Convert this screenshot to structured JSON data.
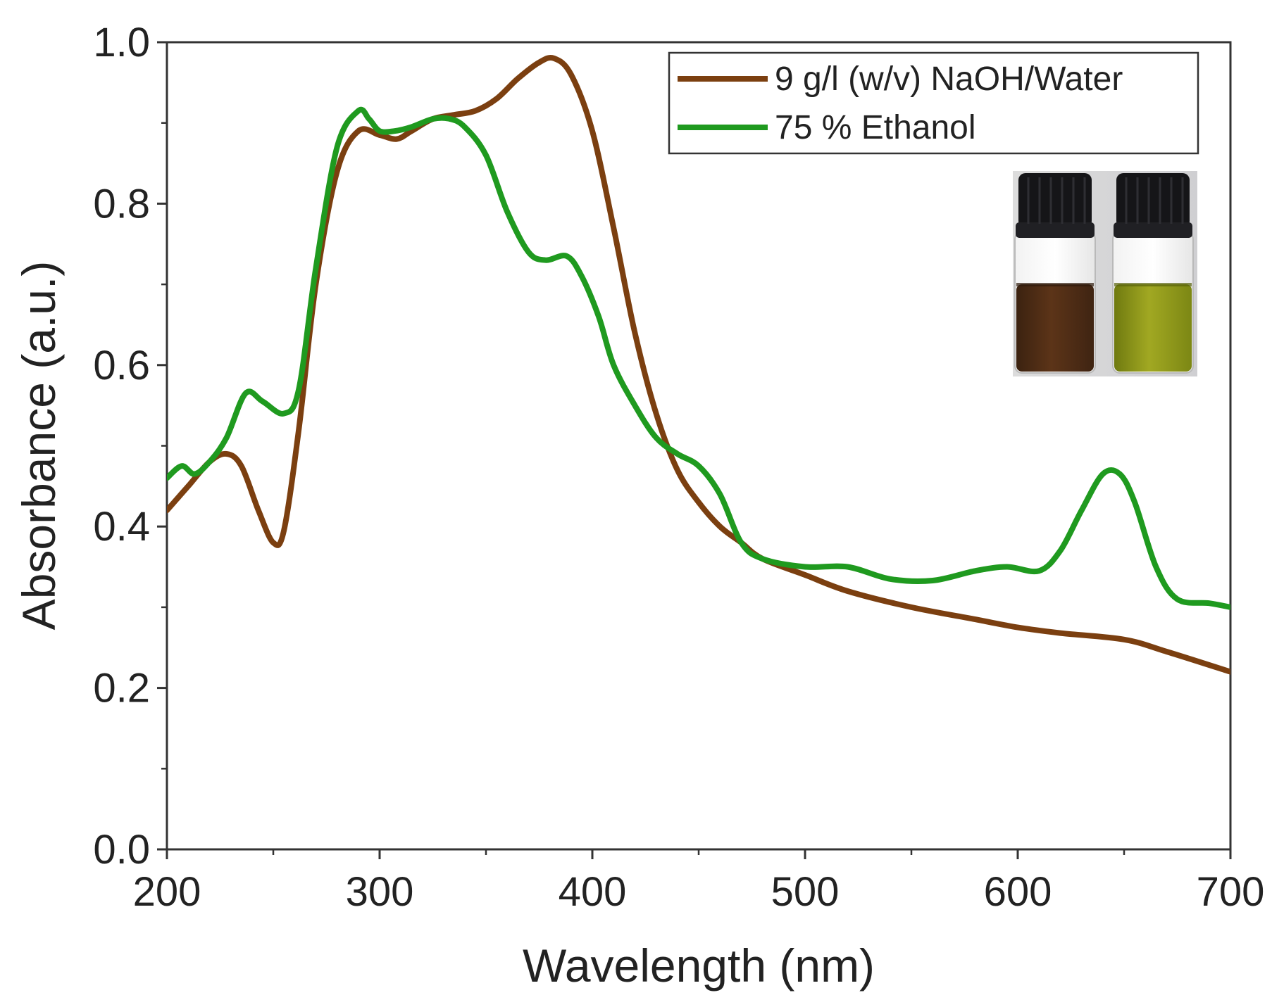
{
  "chart_data": {
    "type": "line",
    "title": "",
    "xlabel": "Wavelength (nm)",
    "ylabel": "Absorbance (a.u.)",
    "xlim": [
      200,
      700
    ],
    "ylim": [
      0.0,
      1.0
    ],
    "xticks": [
      200,
      300,
      400,
      500,
      600,
      700
    ],
    "xtick_labels": [
      "200",
      "300",
      "400",
      "500",
      "600",
      "700"
    ],
    "yticks": [
      0.0,
      0.2,
      0.4,
      0.6,
      0.8,
      1.0
    ],
    "ytick_labels": [
      "0.0",
      "0.2",
      "0.4",
      "0.6",
      "0.8",
      "1.0"
    ],
    "grid": false,
    "legend_position": "top-right",
    "inset": "photograph of two capped glass vials: brown liquid (left) and yellow-green liquid (right)",
    "series": [
      {
        "name": "9 g/l (w/v) NaOH/Water",
        "color": "#7b3f10",
        "x": [
          200,
          210,
          220,
          228,
          235,
          243,
          250,
          255,
          262,
          270,
          280,
          290,
          300,
          308,
          315,
          325,
          335,
          345,
          355,
          365,
          375,
          382,
          390,
          400,
          410,
          420,
          430,
          440,
          450,
          460,
          470,
          480,
          500,
          520,
          550,
          580,
          600,
          620,
          650,
          670,
          700
        ],
        "y": [
          0.42,
          0.45,
          0.48,
          0.49,
          0.475,
          0.42,
          0.38,
          0.395,
          0.52,
          0.7,
          0.84,
          0.89,
          0.885,
          0.88,
          0.89,
          0.905,
          0.91,
          0.915,
          0.93,
          0.955,
          0.975,
          0.98,
          0.96,
          0.89,
          0.77,
          0.64,
          0.54,
          0.47,
          0.43,
          0.4,
          0.38,
          0.36,
          0.34,
          0.32,
          0.3,
          0.285,
          0.275,
          0.268,
          0.26,
          0.245,
          0.22
        ]
      },
      {
        "name": "75 % Ethanol",
        "color": "#1f9a1f",
        "x": [
          200,
          207,
          213,
          220,
          228,
          237,
          245,
          255,
          262,
          270,
          280,
          290,
          295,
          300,
          307,
          315,
          325,
          333,
          340,
          350,
          360,
          370,
          378,
          388,
          395,
          403,
          410,
          420,
          430,
          440,
          450,
          460,
          470,
          480,
          500,
          520,
          540,
          560,
          580,
          595,
          610,
          620,
          630,
          640,
          648,
          655,
          665,
          675,
          690,
          700
        ],
        "y": [
          0.46,
          0.475,
          0.465,
          0.48,
          0.51,
          0.565,
          0.555,
          0.54,
          0.57,
          0.72,
          0.87,
          0.915,
          0.905,
          0.89,
          0.89,
          0.895,
          0.905,
          0.905,
          0.895,
          0.86,
          0.79,
          0.74,
          0.73,
          0.735,
          0.71,
          0.66,
          0.6,
          0.55,
          0.51,
          0.49,
          0.475,
          0.44,
          0.38,
          0.36,
          0.35,
          0.35,
          0.335,
          0.333,
          0.345,
          0.35,
          0.345,
          0.37,
          0.42,
          0.465,
          0.465,
          0.43,
          0.35,
          0.31,
          0.305,
          0.3
        ]
      }
    ]
  }
}
